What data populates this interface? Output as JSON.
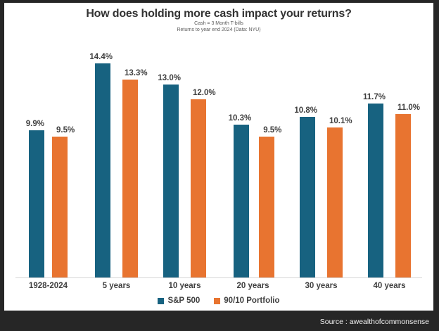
{
  "frame": {
    "background_color": "#262626",
    "source_label": "Source : awealthofcommonsense"
  },
  "header": {
    "title": "How does holding more cash impact your returns?",
    "subtitle_line1": "Cash = 3 Month T-bills",
    "subtitle_line2": "Returns to year end 2024 (Data: NYU)"
  },
  "legend": {
    "items": [
      {
        "label": "S&P 500",
        "color": "#176280"
      },
      {
        "label": "90/10 Portfolio",
        "color": "#E87430"
      }
    ]
  },
  "chart_data": {
    "type": "bar",
    "title": "How does holding more cash impact your returns?",
    "subtitle": [
      "Cash = 3 Month T-bills",
      "Returns to year end 2024 (Data: NYU)"
    ],
    "categories": [
      "1928-2024",
      "5 years",
      "10 years",
      "20 years",
      "30 years",
      "40 years"
    ],
    "series": [
      {
        "name": "S&P 500",
        "color": "#176280",
        "values": [
          9.9,
          14.4,
          13.0,
          10.3,
          10.8,
          11.7
        ],
        "labels": [
          "9.9%",
          "14.4%",
          "13.0%",
          "10.3%",
          "10.8%",
          "11.7%"
        ]
      },
      {
        "name": "90/10 Portfolio",
        "color": "#E87430",
        "values": [
          9.5,
          13.3,
          12.0,
          9.5,
          10.1,
          11.0
        ],
        "labels": [
          "9.5%",
          "13.3%",
          "12.0%",
          "9.5%",
          "10.1%",
          "11.0%"
        ]
      }
    ],
    "ylabel": "",
    "xlabel": "",
    "ylim": [
      0,
      14.7
    ],
    "grid": false,
    "value_labels": true,
    "legend_position": "bottom",
    "source": "Source : awealthofcommonsense"
  }
}
